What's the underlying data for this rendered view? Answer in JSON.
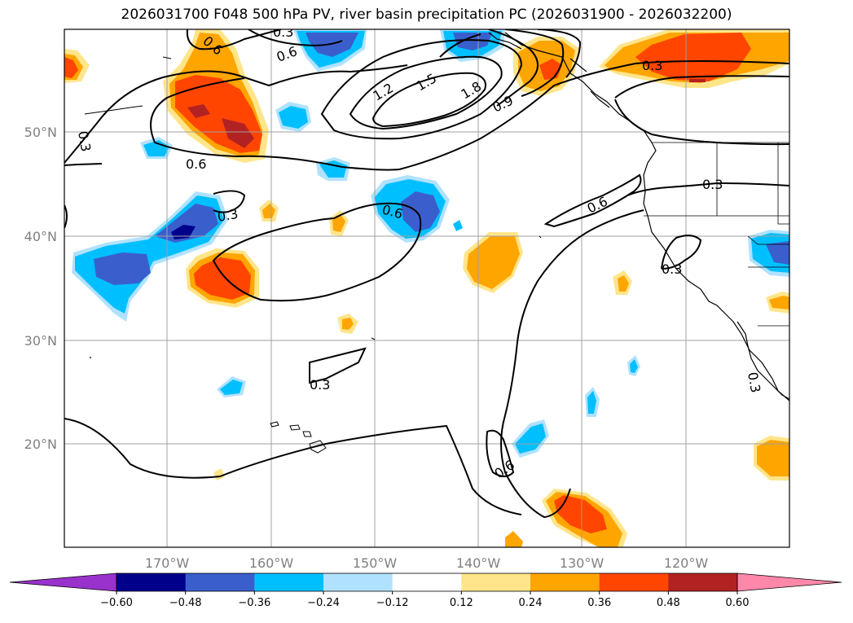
{
  "title": "2026031700 F048 500 hPa PV, river basin precipitation PC (2026031900 - 2026032200)",
  "map": {
    "lat_labels": [
      "50°N",
      "40°N",
      "30°N",
      "20°N"
    ],
    "lon_labels": [
      "170°W",
      "160°W",
      "150°W",
      "140°W",
      "130°W",
      "120°W"
    ],
    "contour_labels": [
      "0.6",
      "0.6",
      "0.3",
      "0.6",
      "0.3",
      "1.2",
      "1.5",
      "1.8",
      "0.9",
      "0.3",
      "0.3",
      "0.6",
      "0.6",
      "0.3",
      "0.3",
      "0.6",
      "0.3",
      "0.3"
    ]
  },
  "colorbar": {
    "ticks": [
      "−0.60",
      "−0.48",
      "−0.36",
      "−0.24",
      "−0.12",
      "0.12",
      "0.24",
      "0.36",
      "0.48",
      "0.60"
    ],
    "colors": [
      "#9932cc",
      "#00008b",
      "#3a5fcd",
      "#00bfff",
      "#b0e2ff",
      "#ffffff",
      "#ffe58a",
      "#ffa500",
      "#ff4500",
      "#b22222",
      "#ff88aa"
    ]
  }
}
